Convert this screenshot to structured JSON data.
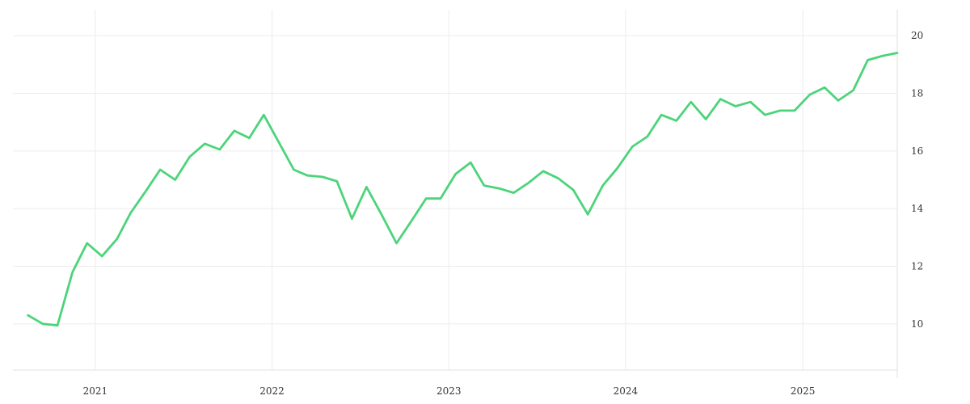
{
  "chart_data": {
    "type": "line",
    "title": "",
    "xlabel": "",
    "ylabel": "",
    "x_ticks": [
      "2021",
      "2022",
      "2023",
      "2024",
      "2025"
    ],
    "y_ticks": [
      10,
      12,
      14,
      16,
      18,
      20
    ],
    "ylim": [
      8.4,
      20.9
    ],
    "xlim": [
      "2020-07-15",
      "2025-07-15"
    ],
    "grid": true,
    "y_axis_side": "right",
    "line_color": "#4cd47a",
    "series": [
      {
        "x": [
          "2020-08",
          "2020-09",
          "2020-10",
          "2020-11",
          "2020-12",
          "2021-01",
          "2021-02",
          "2021-03",
          "2021-04",
          "2021-05",
          "2021-06",
          "2021-07",
          "2021-08",
          "2021-09",
          "2021-10",
          "2021-11",
          "2021-12",
          "2022-01",
          "2022-02",
          "2022-03",
          "2022-04",
          "2022-05",
          "2022-06",
          "2022-07",
          "2022-08",
          "2022-09",
          "2022-10",
          "2022-11",
          "2022-12",
          "2023-01",
          "2023-02",
          "2023-03",
          "2023-04",
          "2023-05",
          "2023-06",
          "2023-07",
          "2023-08",
          "2023-09",
          "2023-10",
          "2023-11",
          "2023-12",
          "2024-01",
          "2024-02",
          "2024-03",
          "2024-04",
          "2024-05",
          "2024-06",
          "2024-07",
          "2024-08",
          "2024-09",
          "2024-10",
          "2024-11",
          "2024-12",
          "2025-01",
          "2025-02",
          "2025-03",
          "2025-04",
          "2025-05",
          "2025-06",
          "2025-07"
        ],
        "values": [
          10.3,
          10.0,
          9.95,
          11.8,
          12.8,
          12.35,
          12.95,
          13.85,
          14.6,
          15.35,
          15.0,
          15.8,
          16.25,
          16.05,
          16.7,
          16.45,
          17.25,
          16.3,
          15.35,
          15.15,
          15.1,
          14.95,
          13.65,
          14.75,
          13.8,
          12.8,
          13.55,
          14.35,
          14.35,
          15.2,
          15.6,
          14.8,
          14.7,
          14.55,
          14.9,
          15.3,
          15.05,
          14.65,
          13.8,
          14.8,
          15.4,
          16.15,
          16.5,
          17.25,
          17.05,
          17.7,
          17.1,
          17.8,
          17.55,
          17.7,
          17.25,
          17.4,
          17.4,
          17.95,
          18.2,
          17.75,
          18.1,
          19.15,
          19.3,
          19.4
        ]
      }
    ]
  }
}
